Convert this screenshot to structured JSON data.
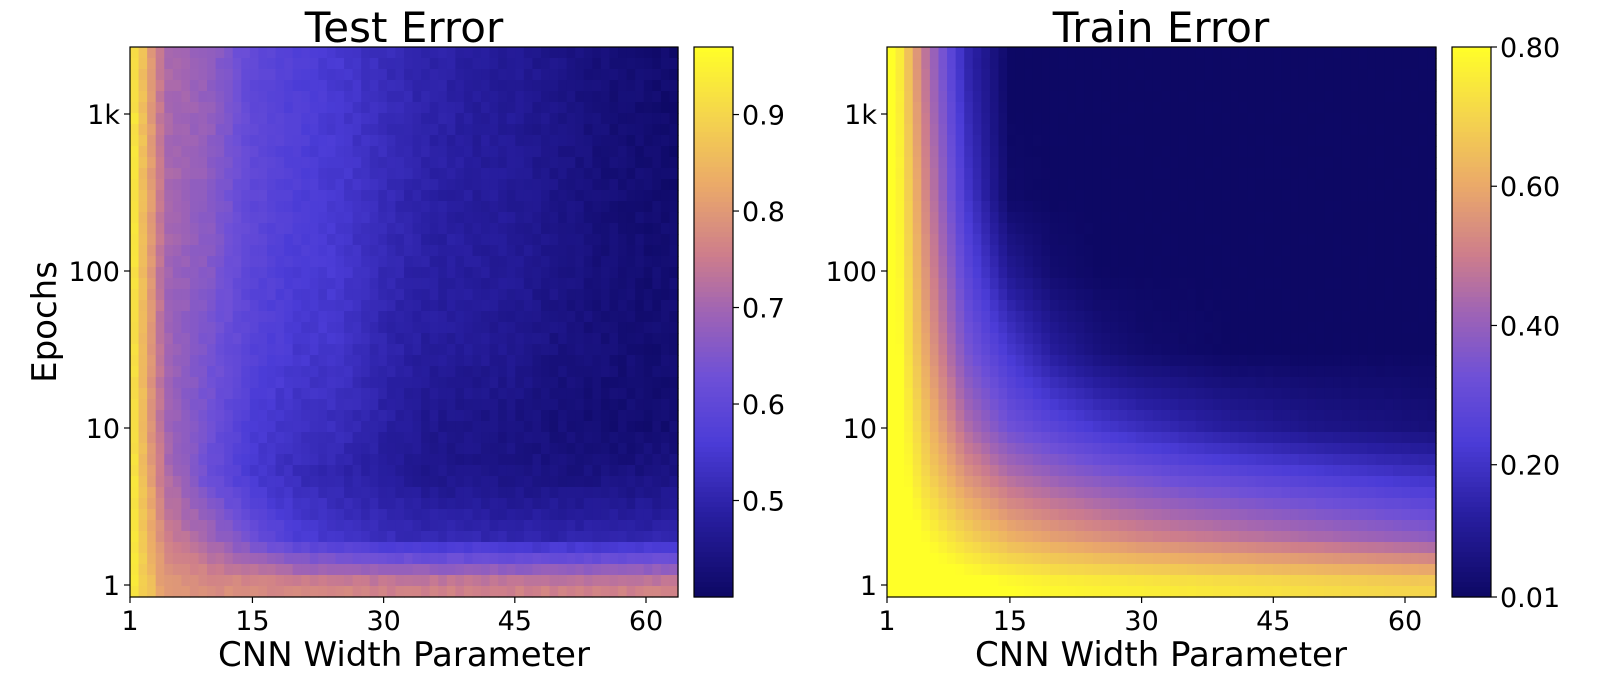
{
  "chart_data": [
    {
      "type": "heatmap",
      "title": "Test Error",
      "xlabel": "CNN Width Parameter",
      "ylabel": "Epochs",
      "x_ticks": [
        1,
        15,
        30,
        45,
        60
      ],
      "x_range": [
        1,
        64
      ],
      "y_scale": "log",
      "y_ticks": [
        {
          "value": 1,
          "label": "1"
        },
        {
          "value": 10,
          "label": "10"
        },
        {
          "value": 100,
          "label": "100"
        },
        {
          "value": 1000,
          "label": "1k"
        }
      ],
      "y_range": [
        1,
        2000
      ],
      "colormap": "plasma",
      "colorbar": {
        "min": 0.4,
        "max": 0.97,
        "ticks": [
          {
            "value": 0.5,
            "label": "0.5"
          },
          {
            "value": 0.6,
            "label": "0.6"
          },
          {
            "value": 0.7,
            "label": "0.7"
          },
          {
            "value": 0.8,
            "label": "0.8"
          },
          {
            "value": 0.9,
            "label": "0.9"
          }
        ]
      },
      "width_values": [
        1,
        5,
        10,
        15,
        20,
        25,
        30,
        35,
        40,
        45,
        50,
        55,
        60,
        64
      ],
      "epoch_values": [
        1,
        2,
        5,
        10,
        30,
        100,
        300,
        1000,
        2000
      ],
      "z": [
        [
          0.95,
          0.8,
          0.78,
          0.78,
          0.77,
          0.77,
          0.76,
          0.76,
          0.76,
          0.76,
          0.76,
          0.76,
          0.76,
          0.76
        ],
        [
          0.95,
          0.76,
          0.7,
          0.62,
          0.56,
          0.54,
          0.52,
          0.51,
          0.51,
          0.5,
          0.5,
          0.5,
          0.5,
          0.51
        ],
        [
          0.95,
          0.72,
          0.62,
          0.55,
          0.52,
          0.5,
          0.48,
          0.46,
          0.45,
          0.45,
          0.44,
          0.44,
          0.44,
          0.44
        ],
        [
          0.94,
          0.7,
          0.63,
          0.56,
          0.53,
          0.52,
          0.49,
          0.46,
          0.45,
          0.44,
          0.43,
          0.42,
          0.42,
          0.42
        ],
        [
          0.94,
          0.7,
          0.64,
          0.58,
          0.55,
          0.54,
          0.5,
          0.48,
          0.47,
          0.46,
          0.44,
          0.43,
          0.42,
          0.42
        ],
        [
          0.95,
          0.7,
          0.66,
          0.59,
          0.56,
          0.55,
          0.51,
          0.49,
          0.48,
          0.47,
          0.45,
          0.43,
          0.42,
          0.42
        ],
        [
          0.95,
          0.71,
          0.67,
          0.6,
          0.57,
          0.55,
          0.52,
          0.49,
          0.48,
          0.47,
          0.45,
          0.43,
          0.42,
          0.41
        ],
        [
          0.95,
          0.71,
          0.68,
          0.6,
          0.57,
          0.55,
          0.52,
          0.5,
          0.48,
          0.47,
          0.45,
          0.43,
          0.42,
          0.41
        ],
        [
          0.95,
          0.71,
          0.68,
          0.6,
          0.57,
          0.55,
          0.52,
          0.5,
          0.48,
          0.47,
          0.45,
          0.43,
          0.42,
          0.41
        ]
      ]
    },
    {
      "type": "heatmap",
      "title": "Train Error",
      "xlabel": "CNN Width Parameter",
      "ylabel": "",
      "x_ticks": [
        1,
        15,
        30,
        45,
        60
      ],
      "x_range": [
        1,
        64
      ],
      "y_scale": "log",
      "y_ticks": [
        {
          "value": 1,
          "label": "1"
        },
        {
          "value": 10,
          "label": "10"
        },
        {
          "value": 100,
          "label": "100"
        },
        {
          "value": 1000,
          "label": "1k"
        }
      ],
      "y_range": [
        1,
        2000
      ],
      "colormap": "plasma",
      "colorbar": {
        "min": 0.01,
        "max": 0.8,
        "ticks": [
          {
            "value": 0.01,
            "label": "0.01"
          },
          {
            "value": 0.2,
            "label": "0.20"
          },
          {
            "value": 0.4,
            "label": "0.40"
          },
          {
            "value": 0.6,
            "label": "0.60"
          },
          {
            "value": 0.8,
            "label": "0.80"
          }
        ]
      },
      "width_values": [
        1,
        5,
        10,
        15,
        20,
        25,
        30,
        35,
        40,
        45,
        50,
        55,
        60,
        64
      ],
      "epoch_values": [
        1,
        2,
        5,
        10,
        30,
        100,
        300,
        1000,
        2000
      ],
      "z": [
        [
          0.9,
          0.85,
          0.83,
          0.8,
          0.78,
          0.77,
          0.76,
          0.75,
          0.74,
          0.73,
          0.72,
          0.71,
          0.7,
          0.7
        ],
        [
          0.9,
          0.8,
          0.7,
          0.62,
          0.58,
          0.55,
          0.52,
          0.5,
          0.48,
          0.46,
          0.44,
          0.42,
          0.4,
          0.38
        ],
        [
          0.9,
          0.72,
          0.55,
          0.45,
          0.4,
          0.36,
          0.33,
          0.3,
          0.28,
          0.26,
          0.24,
          0.22,
          0.2,
          0.19
        ],
        [
          0.9,
          0.68,
          0.45,
          0.33,
          0.27,
          0.22,
          0.18,
          0.15,
          0.12,
          0.1,
          0.08,
          0.07,
          0.06,
          0.05
        ],
        [
          0.9,
          0.62,
          0.35,
          0.22,
          0.12,
          0.06,
          0.03,
          0.02,
          0.01,
          0.01,
          0.01,
          0.01,
          0.01,
          0.01
        ],
        [
          0.9,
          0.58,
          0.28,
          0.1,
          0.03,
          0.01,
          0.01,
          0.01,
          0.01,
          0.01,
          0.01,
          0.01,
          0.01,
          0.01
        ],
        [
          0.9,
          0.55,
          0.22,
          0.02,
          0.01,
          0.01,
          0.01,
          0.01,
          0.01,
          0.01,
          0.01,
          0.01,
          0.01,
          0.01
        ],
        [
          0.9,
          0.52,
          0.18,
          0.01,
          0.01,
          0.01,
          0.01,
          0.01,
          0.01,
          0.01,
          0.01,
          0.01,
          0.01,
          0.01
        ],
        [
          0.9,
          0.5,
          0.16,
          0.01,
          0.01,
          0.01,
          0.01,
          0.01,
          0.01,
          0.01,
          0.01,
          0.01,
          0.01,
          0.01
        ]
      ]
    }
  ]
}
